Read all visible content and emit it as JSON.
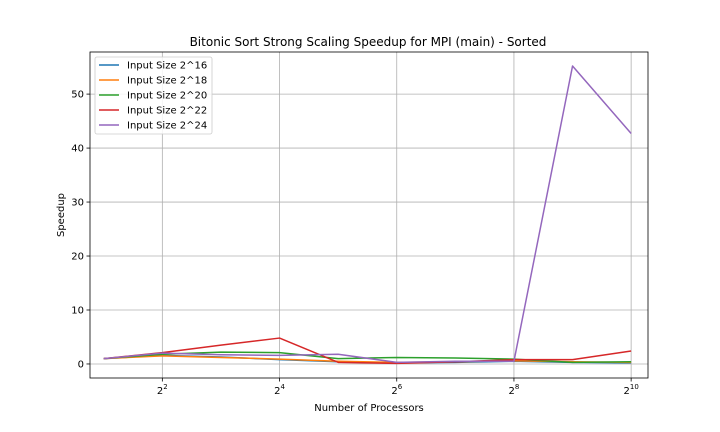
{
  "chart_data": {
    "type": "line",
    "title": "Bitonic Sort Strong Scaling Speedup for MPI (main) - Sorted",
    "xlabel": "Number of Processors",
    "ylabel": "Speedup",
    "x_scale": "log2",
    "x": [
      2,
      4,
      8,
      16,
      32,
      64,
      128,
      256,
      512,
      1024
    ],
    "xlim": [
      1.7,
      1250
    ],
    "ylim": [
      -2.6,
      57.8
    ],
    "x_ticks": [
      {
        "value": 4,
        "base": "2",
        "exp": "2"
      },
      {
        "value": 16,
        "base": "2",
        "exp": "4"
      },
      {
        "value": 64,
        "base": "2",
        "exp": "6"
      },
      {
        "value": 256,
        "base": "2",
        "exp": "8"
      },
      {
        "value": 1024,
        "base": "2",
        "exp": "10"
      }
    ],
    "y_ticks": [
      {
        "value": 0,
        "label": "0"
      },
      {
        "value": 10,
        "label": "10"
      },
      {
        "value": 20,
        "label": "20"
      },
      {
        "value": 30,
        "label": "30"
      },
      {
        "value": 40,
        "label": "40"
      },
      {
        "value": 50,
        "label": "50"
      }
    ],
    "grid": true,
    "legend_position": "top-left",
    "series": [
      {
        "name": "Input Size 2^16",
        "color": "#1f77b4",
        "values": [
          1.0,
          1.6,
          1.3,
          0.8,
          0.4,
          0.2,
          0.3,
          0.5,
          0.3,
          0.2
        ]
      },
      {
        "name": "Input Size 2^18",
        "color": "#ff7f0e",
        "values": [
          1.0,
          1.5,
          1.2,
          0.9,
          0.5,
          0.3,
          0.4,
          0.6,
          0.4,
          0.3
        ]
      },
      {
        "name": "Input Size 2^20",
        "color": "#2ca02c",
        "values": [
          1.0,
          1.8,
          2.2,
          2.1,
          1.0,
          1.2,
          1.1,
          0.9,
          0.3,
          0.4
        ]
      },
      {
        "name": "Input Size 2^22",
        "color": "#d62728",
        "values": [
          1.0,
          2.1,
          3.5,
          4.8,
          0.3,
          0.1,
          0.4,
          0.8,
          0.8,
          2.4
        ]
      },
      {
        "name": "Input Size 2^24",
        "color": "#9467bd",
        "values": [
          1.0,
          2.0,
          1.7,
          1.6,
          1.8,
          0.3,
          0.5,
          0.5,
          55.2,
          42.7
        ]
      }
    ]
  }
}
